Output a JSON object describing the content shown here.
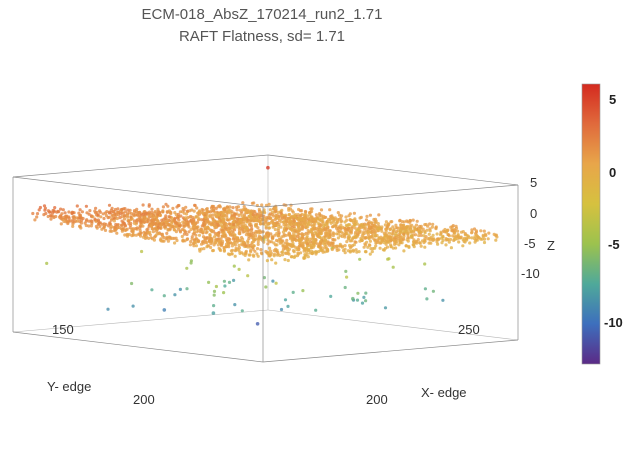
{
  "chart_data": {
    "type": "scatter",
    "projection": "3d",
    "title": "ECM-018_AbsZ_170214_run2_1.71",
    "subtitle": "RAFT Flatness, sd= 1.71",
    "xlabel": "X- edge",
    "ylabel": "Y- edge",
    "zlabel": "Z",
    "x_ticks": [
      "200",
      "250"
    ],
    "y_ticks": [
      "150",
      "200"
    ],
    "z_ticks": [
      "5",
      "0",
      "-5",
      "-10"
    ],
    "xlim": [
      150,
      300
    ],
    "ylim": [
      120,
      230
    ],
    "zlim": [
      -13,
      7
    ],
    "colorbar": {
      "ticks": [
        "5",
        "0",
        "-5",
        "-10"
      ],
      "range": [
        -13,
        6
      ],
      "colors": [
        "#5b2a86",
        "#3d6fbd",
        "#4fa99a",
        "#9cc24e",
        "#d6c13f",
        "#e8a64a",
        "#e06a3c",
        "#d42a1f"
      ]
    },
    "point_cloud": {
      "grid_blocks": 3,
      "z_range_typical": [
        -2,
        3
      ],
      "outlier_high": 5.5,
      "outlier_low": -11
    }
  }
}
